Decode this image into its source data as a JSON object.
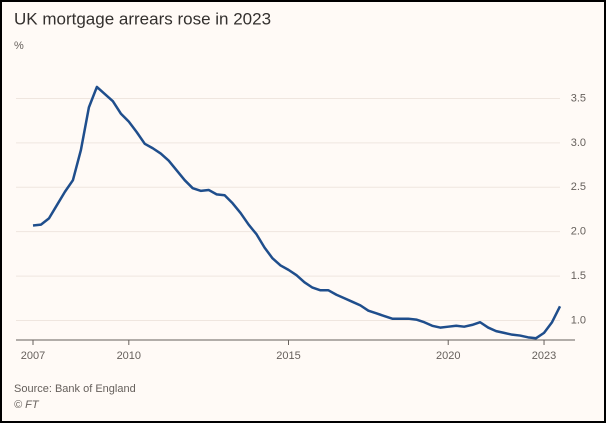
{
  "chart_data": {
    "type": "line",
    "title": "UK mortgage arrears rose in 2023",
    "y_label": "%",
    "source": "Source: Bank of England",
    "credit": "© FT",
    "x": [
      2007,
      2007.25,
      2007.5,
      2007.75,
      2008,
      2008.25,
      2008.5,
      2008.75,
      2009,
      2009.25,
      2009.5,
      2009.75,
      2010,
      2010.25,
      2010.5,
      2010.75,
      2011,
      2011.25,
      2011.5,
      2011.75,
      2012,
      2012.25,
      2012.5,
      2012.75,
      2013,
      2013.25,
      2013.5,
      2013.75,
      2014,
      2014.25,
      2014.5,
      2014.75,
      2015,
      2015.25,
      2015.5,
      2015.75,
      2016,
      2016.25,
      2016.5,
      2016.75,
      2017,
      2017.25,
      2017.5,
      2017.75,
      2018,
      2018.25,
      2018.5,
      2018.75,
      2019,
      2019.25,
      2019.5,
      2019.75,
      2020,
      2020.25,
      2020.5,
      2020.75,
      2021,
      2021.25,
      2021.5,
      2021.75,
      2022,
      2022.25,
      2022.5,
      2022.75,
      2023,
      2023.25,
      2023.5
    ],
    "series": [
      {
        "name": "Mortgage arrears",
        "color": "#1f4e8c",
        "values": [
          2.07,
          2.08,
          2.15,
          2.3,
          2.45,
          2.58,
          2.92,
          3.4,
          3.63,
          3.55,
          3.47,
          3.33,
          3.24,
          3.12,
          2.99,
          2.94,
          2.88,
          2.8,
          2.69,
          2.58,
          2.49,
          2.46,
          2.47,
          2.42,
          2.41,
          2.32,
          2.21,
          2.08,
          1.97,
          1.82,
          1.7,
          1.62,
          1.57,
          1.51,
          1.43,
          1.37,
          1.34,
          1.34,
          1.29,
          1.25,
          1.21,
          1.17,
          1.11,
          1.08,
          1.05,
          1.02,
          1.02,
          1.02,
          1.01,
          0.98,
          0.94,
          0.92,
          0.93,
          0.94,
          0.93,
          0.95,
          0.98,
          0.92,
          0.88,
          0.86,
          0.84,
          0.83,
          0.81,
          0.8,
          0.86,
          0.98,
          1.16
        ]
      }
    ],
    "xlim": [
      2007,
      2023.5
    ],
    "xticks": [
      2007,
      2010,
      2015,
      2020,
      2023
    ],
    "ylim": [
      0.78,
      3.9
    ],
    "yticks": [
      {
        "value": 1,
        "label": "1.0"
      },
      {
        "value": 1.5,
        "label": "1.5"
      },
      {
        "value": 2,
        "label": "2.0"
      },
      {
        "value": 2.5,
        "label": "2.5"
      },
      {
        "value": 3,
        "label": "3.0"
      },
      {
        "value": 3.5,
        "label": "3.5"
      }
    ],
    "grid": true
  }
}
